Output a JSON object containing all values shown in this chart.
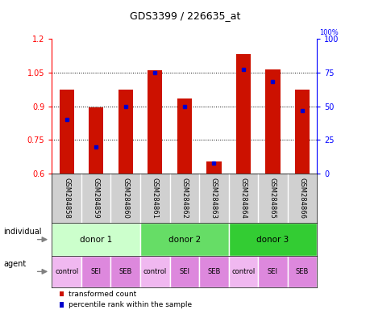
{
  "title": "GDS3399 / 226635_at",
  "samples": [
    "GSM284858",
    "GSM284859",
    "GSM284860",
    "GSM284861",
    "GSM284862",
    "GSM284863",
    "GSM284864",
    "GSM284865",
    "GSM284866"
  ],
  "transformed_count": [
    0.975,
    0.895,
    0.975,
    1.06,
    0.935,
    0.655,
    1.13,
    1.065,
    0.975
  ],
  "percentile_rank": [
    40,
    20,
    50,
    75,
    50,
    8,
    77,
    68,
    47
  ],
  "ymin": 0.6,
  "ymax": 1.2,
  "yticks_left": [
    0.6,
    0.75,
    0.9,
    1.05,
    1.2
  ],
  "yticks_right": [
    0,
    25,
    50,
    75,
    100
  ],
  "bar_color": "#cc1100",
  "dot_color": "#0000cc",
  "plot_bg": "#ffffff",
  "gray_bg": "#d0d0d0",
  "individual_colors": [
    "#ccffcc",
    "#66dd66",
    "#33cc33"
  ],
  "individual_labels": [
    "donor 1",
    "donor 2",
    "donor 3"
  ],
  "agent_labels": [
    "control",
    "SEI",
    "SEB",
    "control",
    "SEI",
    "SEB",
    "control",
    "SEI",
    "SEB"
  ],
  "agent_color_control": "#f0b8f0",
  "agent_color_sei_seb": "#dd88dd",
  "legend_bar_label": "transformed count",
  "legend_dot_label": "percentile rank within the sample",
  "individual_row_label": "individual",
  "agent_row_label": "agent"
}
